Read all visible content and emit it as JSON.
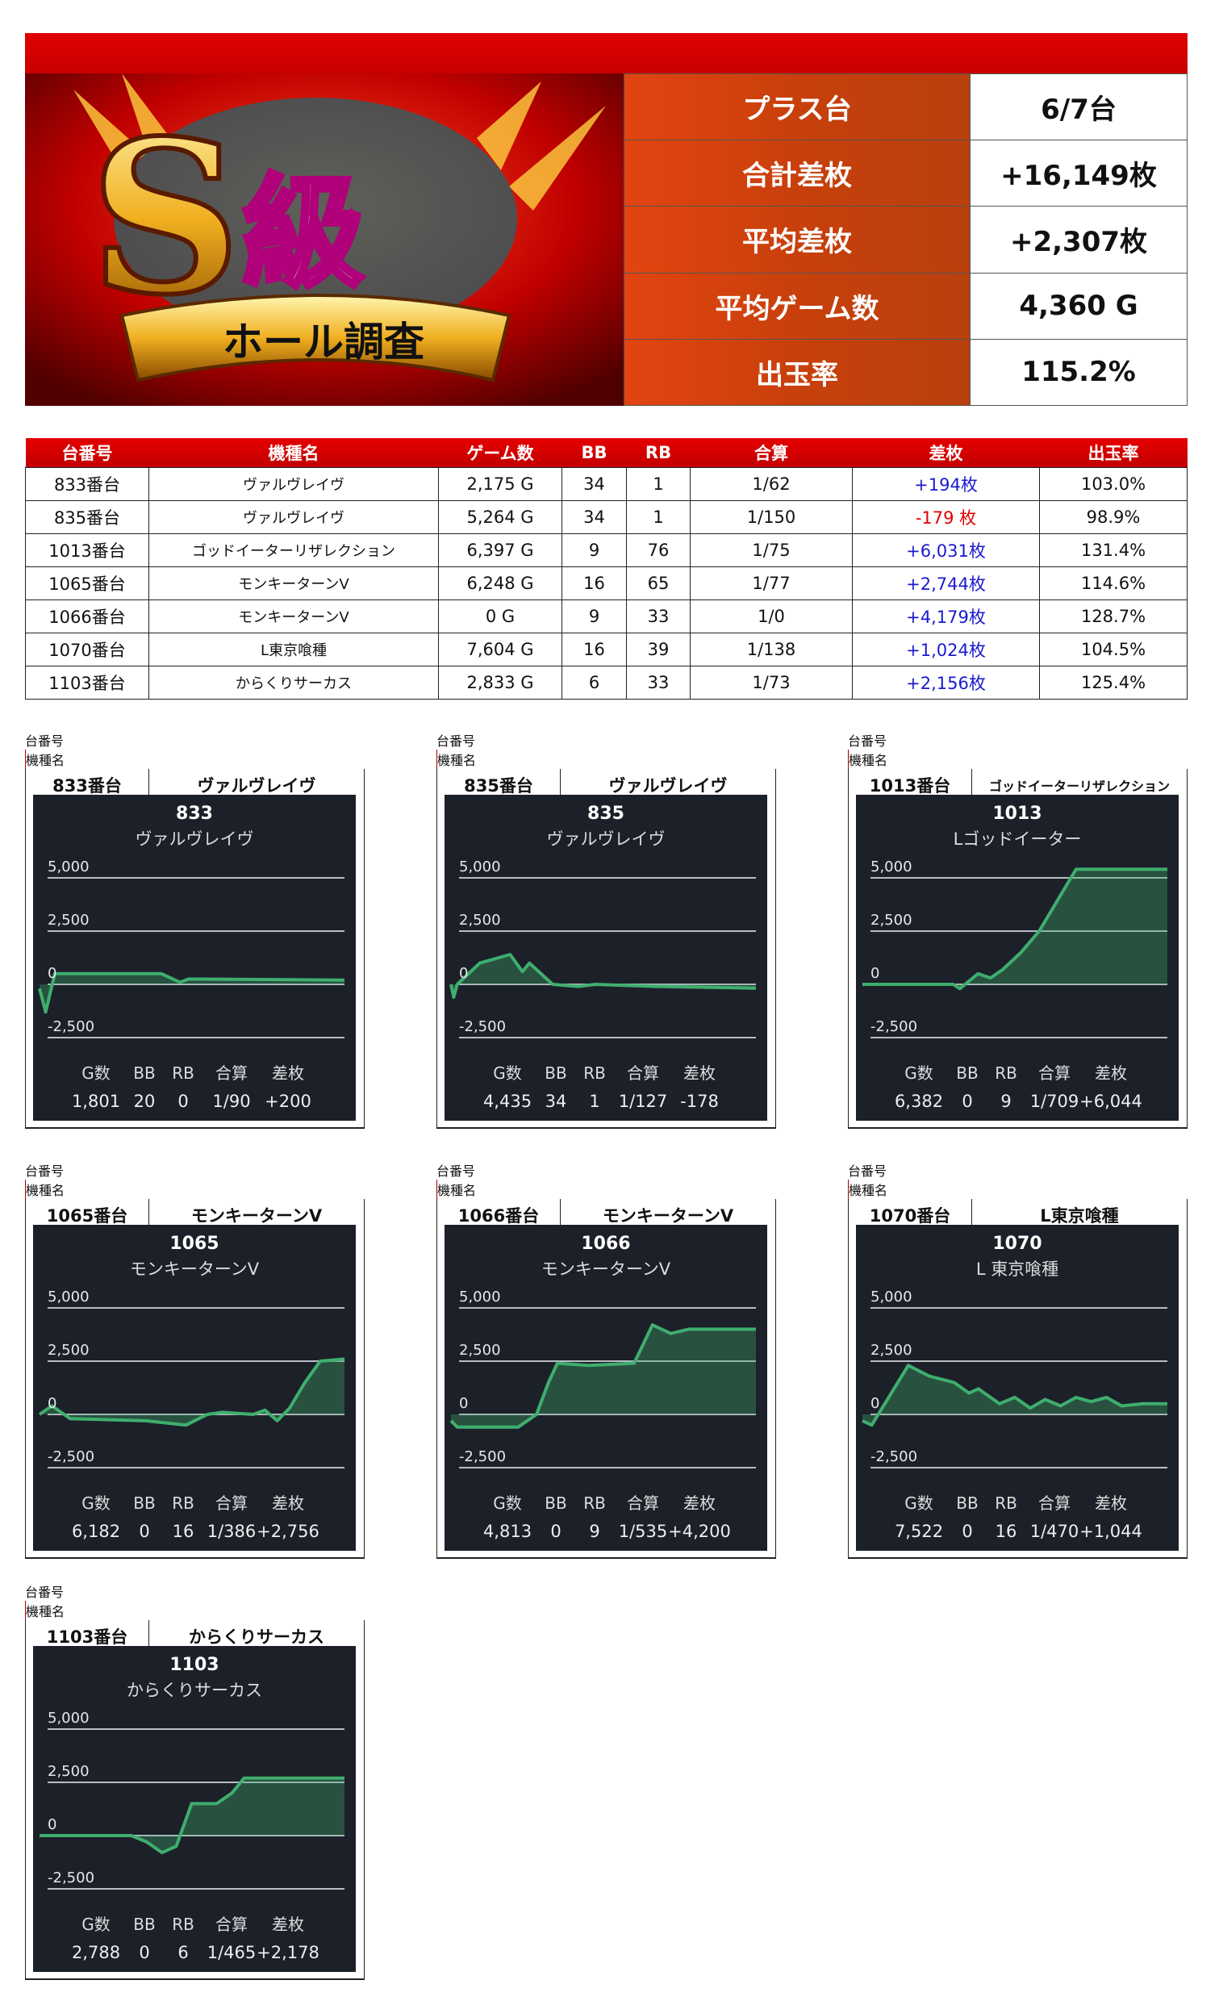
{
  "banner": {
    "logo_text": "S級",
    "logo_subtitle": "ホール調査"
  },
  "colors": {
    "header_red": "#e00000",
    "stat_label": "#d8440e",
    "positive": "#1a1ad0",
    "negative": "#e00000",
    "chart_bg": "#1c2029",
    "chart_line": "#3fae6e"
  },
  "summary": [
    {
      "label": "プラス台",
      "value": "6/7台"
    },
    {
      "label": "合計差枚",
      "value": "+16,149枚"
    },
    {
      "label": "平均差枚",
      "value": "+2,307枚"
    },
    {
      "label": "平均ゲーム数",
      "value": "4,360 G"
    },
    {
      "label": "出玉率",
      "value": "115.2%"
    }
  ],
  "table": {
    "headers": [
      "台番号",
      "機種名",
      "ゲーム数",
      "BB",
      "RB",
      "合算",
      "差枚",
      "出玉率"
    ],
    "rows": [
      [
        "833番台",
        "ヴァルヴレイヴ",
        "2,175 G",
        "34",
        "1",
        "1/62",
        "+194枚",
        "103.0%"
      ],
      [
        "835番台",
        "ヴァルヴレイヴ",
        "5,264 G",
        "34",
        "1",
        "1/150",
        "-179 枚",
        "98.9%"
      ],
      [
        "1013番台",
        "ゴッドイーターリザレクション",
        "6,397 G",
        "9",
        "76",
        "1/75",
        "+6,031枚",
        "131.4%"
      ],
      [
        "1065番台",
        "モンキーターンV",
        "6,248 G",
        "16",
        "65",
        "1/77",
        "+2,744枚",
        "114.6%"
      ],
      [
        "1066番台",
        "モンキーターンV",
        "0 G",
        "9",
        "33",
        "1/0",
        "+4,179枚",
        "128.7%"
      ],
      [
        "1070番台",
        "L東京喰種",
        "7,604 G",
        "16",
        "39",
        "1/138",
        "+1,024枚",
        "104.5%"
      ],
      [
        "1103番台",
        "からくりサーカス",
        "2,833 G",
        "6",
        "33",
        "1/73",
        "+2,156枚",
        "125.4%"
      ]
    ]
  },
  "card_headers": [
    "台番号",
    "機種名"
  ],
  "stat_headers": [
    "G数",
    "BB",
    "RB",
    "合算",
    "差枚"
  ],
  "chart_data": [
    {
      "type": "area",
      "unit": "833番台",
      "kind": "ヴァルヴレイヴ",
      "title": "833",
      "subtitle": "ヴァルヴレイヴ",
      "yticks": [
        "5,000",
        "2,500",
        "0",
        "-2,500"
      ],
      "ylim": [
        -2500,
        5000
      ],
      "grid": true,
      "x": [
        0,
        36,
        90,
        720,
        830,
        880,
        1801
      ],
      "y": [
        -200,
        -1300,
        500,
        500,
        100,
        250,
        200
      ],
      "stats": [
        "1,801",
        "20",
        "0",
        "1/90",
        "+200"
      ]
    },
    {
      "type": "area",
      "unit": "835番台",
      "kind": "ヴァルヴレイヴ",
      "title": "835",
      "subtitle": "ヴァルヴレイヴ",
      "yticks": [
        "5,000",
        "2,500",
        "0",
        "-2,500"
      ],
      "ylim": [
        -2500,
        5000
      ],
      "grid": true,
      "x": [
        0,
        40,
        90,
        420,
        860,
        1040,
        1140,
        1480,
        1850,
        2100,
        3000,
        4435
      ],
      "y": [
        0,
        -600,
        0,
        1000,
        1400,
        600,
        1000,
        0,
        -100,
        0,
        -100,
        -178
      ],
      "stats": [
        "4,435",
        "34",
        "1",
        "1/127",
        "-178"
      ]
    },
    {
      "type": "area",
      "unit": "1013番台",
      "kind": "ゴッドイーターリザレクション",
      "title": "1013",
      "subtitle": "Lゴッドイーター",
      "yticks": [
        "5,000",
        "2,500",
        "0",
        "-2,500"
      ],
      "ylim": [
        -2500,
        5000
      ],
      "grid": true,
      "x": [
        0,
        1900,
        2040,
        2420,
        2680,
        2940,
        3320,
        3700,
        4470,
        6382
      ],
      "y": [
        0,
        0,
        -200,
        500,
        300,
        700,
        1500,
        2500,
        5400,
        5400
      ],
      "stats": [
        "6,382",
        "0",
        "9",
        "1/709",
        "+6,044"
      ]
    },
    {
      "type": "area",
      "unit": "1065番台",
      "kind": "モンキーターンV",
      "title": "1065",
      "subtitle": "モンキーターンV",
      "yticks": [
        "5,000",
        "2,500",
        "0",
        "-2,500"
      ],
      "ylim": [
        -2500,
        5000
      ],
      "grid": true,
      "x": [
        0,
        250,
        620,
        2160,
        2970,
        3400,
        3710,
        4330,
        4570,
        4820,
        5070,
        5380,
        5690,
        6182
      ],
      "y": [
        0,
        400,
        -200,
        -300,
        -500,
        0,
        100,
        0,
        200,
        -300,
        300,
        1500,
        2500,
        2600
      ],
      "stats": [
        "6,182",
        "0",
        "16",
        "1/386",
        "+2,756"
      ]
    },
    {
      "type": "area",
      "unit": "1066番台",
      "kind": "モンキーターンV",
      "title": "1066",
      "subtitle": "モンキーターンV",
      "yticks": [
        "5,000",
        "2,500",
        "0",
        "-2,500"
      ],
      "ylim": [
        -2500,
        5000
      ],
      "grid": true,
      "x": [
        0,
        100,
        1060,
        1350,
        1540,
        1680,
        2170,
        2890,
        3180,
        3470,
        3750,
        4813
      ],
      "y": [
        -300,
        -600,
        -600,
        0,
        1500,
        2400,
        2300,
        2400,
        4200,
        3800,
        4000,
        4000
      ],
      "stats": [
        "4,813",
        "0",
        "9",
        "1/535",
        "+4,200"
      ]
    },
    {
      "type": "area",
      "unit": "1070番台",
      "kind": "L東京喰種",
      "title": "1070",
      "subtitle": "L 東京喰種",
      "yticks": [
        "5,000",
        "2,500",
        "0",
        "-2,500"
      ],
      "ylim": [
        -2500,
        5000
      ],
      "grid": true,
      "x": [
        0,
        230,
        1130,
        1650,
        2260,
        2630,
        2860,
        3380,
        3760,
        4140,
        4510,
        4890,
        5270,
        5640,
        6020,
        6390,
        6920,
        7522
      ],
      "y": [
        -300,
        -500,
        2300,
        1800,
        1500,
        1000,
        1200,
        500,
        800,
        300,
        700,
        400,
        800,
        600,
        800,
        400,
        500,
        500
      ],
      "stats": [
        "7,522",
        "0",
        "16",
        "1/470",
        "+1,044"
      ]
    },
    {
      "type": "area",
      "unit": "1103番台",
      "kind": "からくりサーカス",
      "title": "1103",
      "subtitle": "からくりサーカス",
      "yticks": [
        "5,000",
        "2,500",
        "0",
        "-2,500"
      ],
      "ylim": [
        -2500,
        5000
      ],
      "grid": true,
      "x": [
        0,
        840,
        980,
        1120,
        1250,
        1390,
        1620,
        1760,
        1870,
        2788
      ],
      "y": [
        0,
        0,
        -300,
        -800,
        -500,
        1500,
        1500,
        2000,
        2700,
        2700
      ],
      "stats": [
        "2,788",
        "0",
        "6",
        "1/465",
        "+2,178"
      ]
    }
  ]
}
